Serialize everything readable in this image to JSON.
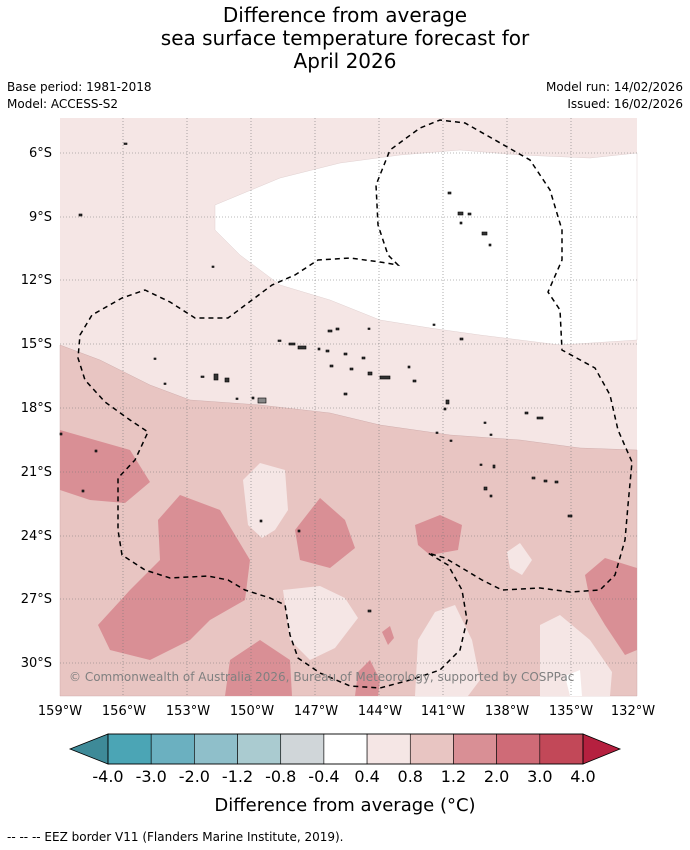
{
  "title": {
    "line1": "Difference from average",
    "line2": "sea surface temperature forecast for",
    "line3": "April 2026"
  },
  "meta": {
    "base_period": "Base period: 1981-2018",
    "model": "Model: ACCESS-S2",
    "model_run": "Model run: 14/02/2026",
    "issued": "Issued: 16/02/2026"
  },
  "map": {
    "lat_labels": [
      "6°S",
      "9°S",
      "12°S",
      "15°S",
      "18°S",
      "21°S",
      "24°S",
      "27°S",
      "30°S"
    ],
    "lon_labels": [
      "159°W",
      "156°W",
      "153°W",
      "150°W",
      "147°W",
      "144°W",
      "141°W",
      "138°W",
      "135°W",
      "132°W"
    ],
    "copyright": "© Commonwealth of Australia 2026, Bureau of Meteorology, supported by COSPPac"
  },
  "colorbar": {
    "ticks": [
      "-4.0",
      "-3.0",
      "-2.0",
      "-1.2",
      "-0.8",
      "-0.4",
      "0.4",
      "0.8",
      "1.2",
      "2.0",
      "3.0",
      "4.0"
    ],
    "colors": [
      "#3e8a98",
      "#4ba5b5",
      "#6bb0c0",
      "#8fbfca",
      "#aacbd0",
      "#d0d6d9",
      "#ffffff",
      "#f5e6e5",
      "#e8c5c2",
      "#d98f95",
      "#cf6b77",
      "#c24858",
      "#b5203f"
    ],
    "label": "Difference from average (°C)"
  },
  "footer": {
    "legend_text": "--  --  -- EEZ border V11 (Flanders Marine Institute, 2019)."
  }
}
